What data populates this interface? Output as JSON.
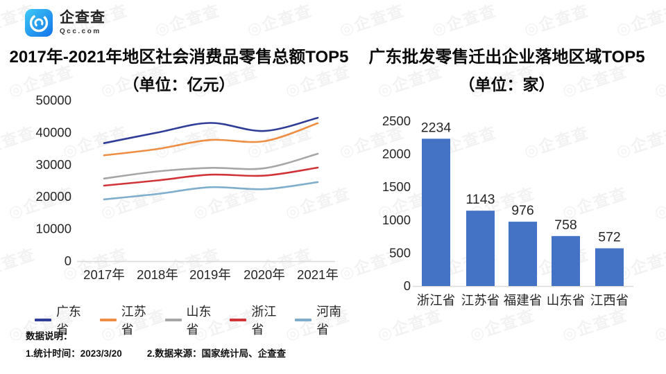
{
  "brand": {
    "name": "企查查",
    "domain": "Qcc.com",
    "brand_color": "#1273EB"
  },
  "titles": {
    "left_title": "2017年-2021年地区社会消费品零售总额TOP5",
    "left_subtitle": "（单位：亿元）",
    "right_title": "广东批发零售迁出企业落地区域TOP5",
    "right_subtitle": "（单位：家）"
  },
  "watermark": {
    "icon": "◎",
    "text": "企查查"
  },
  "footnote": {
    "heading": "数据说明：",
    "item1": "1.统计时间：2023/3/20",
    "item2": "2.数据来源：国家统计局、企查查"
  },
  "colors": {
    "axis_line": "#D9D9D9",
    "tick_text": "#262626",
    "bar_fill": "#4472C4"
  },
  "chart_data": [
    {
      "type": "line",
      "title": "2017年-2021年地区社会消费品零售总额TOP5",
      "subtitle": "（单位：亿元）",
      "x": [
        "2017年",
        "2018年",
        "2019年",
        "2020年",
        "2021年"
      ],
      "ylabel": "",
      "ylim": [
        0,
        50000
      ],
      "yticks": [
        0,
        10000,
        20000,
        30000,
        40000,
        50000
      ],
      "grid": false,
      "legend_position": "bottom",
      "series": [
        {
          "name": "广东省",
          "color": "#2F3D99",
          "values": [
            36700,
            40000,
            43000,
            40500,
            44600
          ]
        },
        {
          "name": "江苏省",
          "color": "#ED8E44",
          "values": [
            32900,
            34900,
            37700,
            37300,
            42900
          ]
        },
        {
          "name": "山东省",
          "color": "#A6A6A6",
          "values": [
            25700,
            27900,
            29000,
            28900,
            33400
          ]
        },
        {
          "name": "浙江省",
          "color": "#D13438",
          "values": [
            23500,
            25100,
            26900,
            26600,
            29100
          ]
        },
        {
          "name": "河南省",
          "color": "#7EAECB",
          "values": [
            19200,
            20900,
            23000,
            22400,
            24600
          ]
        }
      ]
    },
    {
      "type": "bar",
      "title": "广东批发零售迁出企业落地区域TOP5",
      "subtitle": "（单位：家）",
      "categories": [
        "浙江省",
        "江苏省",
        "福建省",
        "山东省",
        "江西省"
      ],
      "values": [
        2234,
        1143,
        976,
        758,
        572
      ],
      "data_labels": [
        2234,
        1143,
        976,
        758,
        572
      ],
      "bar_color": "#4472C4",
      "ylim": [
        0,
        2500
      ],
      "yticks": [
        0,
        500,
        1000,
        1500,
        2000,
        2500
      ],
      "grid": false
    }
  ]
}
